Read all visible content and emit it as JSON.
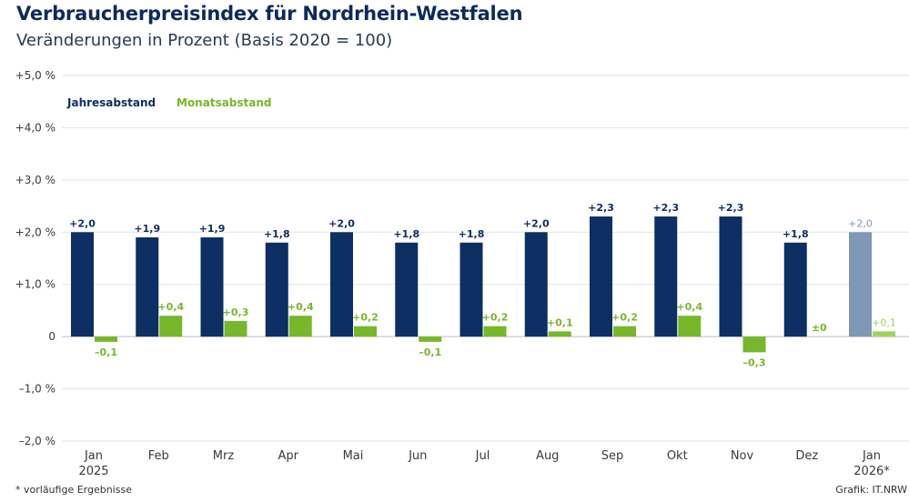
{
  "header": {
    "title": "Verbraucherpreisindex für Nordrhein-Westfalen",
    "subtitle": "Veränderungen in Prozent (Basis 2020 = 100)"
  },
  "footer": {
    "footnote": "*  vorläufige Ergebnisse",
    "source": "Grafik: IT.NRW"
  },
  "colors": {
    "jahres": "#0d2f63",
    "monats": "#76b82a",
    "jahres_prelim": "#7f98b5",
    "monats_prelim": "#9fd35b",
    "grid": "#e3e3e3",
    "axis_text": "#3a3a3a"
  },
  "chart_data": {
    "type": "bar",
    "title": "Verbraucherpreisindex für Nordrhein-Westfalen",
    "subtitle": "Veränderungen in Prozent (Basis 2020 = 100)",
    "xlabel": "",
    "ylabel": "",
    "ylim": [
      -2.0,
      5.0
    ],
    "grid": true,
    "legend_position": "top-left",
    "yticks": [
      {
        "value": 5.0,
        "label": "+5,0 %"
      },
      {
        "value": 4.0,
        "label": "+4,0 %"
      },
      {
        "value": 3.0,
        "label": "+3,0 %"
      },
      {
        "value": 2.0,
        "label": "+2,0 %"
      },
      {
        "value": 1.0,
        "label": "+1,0 %"
      },
      {
        "value": 0.0,
        "label": "0"
      },
      {
        "value": -1.0,
        "label": "–1,0 %"
      },
      {
        "value": -2.0,
        "label": "–2,0 %"
      }
    ],
    "categories": [
      {
        "label": "Jan",
        "sub": "2025",
        "preliminary": false
      },
      {
        "label": "Feb",
        "sub": "",
        "preliminary": false
      },
      {
        "label": "Mrz",
        "sub": "",
        "preliminary": false
      },
      {
        "label": "Apr",
        "sub": "",
        "preliminary": false
      },
      {
        "label": "Mai",
        "sub": "",
        "preliminary": false
      },
      {
        "label": "Jun",
        "sub": "",
        "preliminary": false
      },
      {
        "label": "Jul",
        "sub": "",
        "preliminary": false
      },
      {
        "label": "Aug",
        "sub": "",
        "preliminary": false
      },
      {
        "label": "Sep",
        "sub": "",
        "preliminary": false
      },
      {
        "label": "Okt",
        "sub": "",
        "preliminary": false
      },
      {
        "label": "Nov",
        "sub": "",
        "preliminary": false
      },
      {
        "label": "Dez",
        "sub": "",
        "preliminary": false
      },
      {
        "label": "Jan",
        "sub": "2026*",
        "preliminary": true
      }
    ],
    "series": [
      {
        "name": "Jahresabstand",
        "values": [
          2.0,
          1.9,
          1.9,
          1.8,
          2.0,
          1.8,
          1.8,
          2.0,
          2.3,
          2.3,
          2.3,
          1.8,
          2.0
        ],
        "labels": [
          "+2,0",
          "+1,9",
          "+1,9",
          "+1,8",
          "+2,0",
          "+1,8",
          "+1,8",
          "+2,0",
          "+2,3",
          "+2,3",
          "+2,3",
          "+1,8",
          "+2,0"
        ]
      },
      {
        "name": "Monatsabstand",
        "values": [
          -0.1,
          0.4,
          0.3,
          0.4,
          0.2,
          -0.1,
          0.2,
          0.1,
          0.2,
          0.4,
          -0.3,
          0.0,
          0.1
        ],
        "labels": [
          "–0,1",
          "+0,4",
          "+0,3",
          "+0,4",
          "+0,2",
          "–0,1",
          "+0,2",
          "+0,1",
          "+0,2",
          "+0,4",
          "–0,3",
          "±0",
          "+0,1"
        ]
      }
    ]
  }
}
